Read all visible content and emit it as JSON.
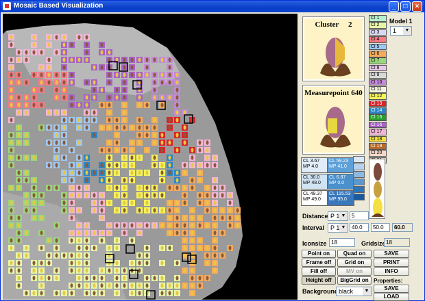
{
  "window": {
    "title": "Mosaic Based Visualization"
  },
  "preview_cluster": {
    "label": "Cluster",
    "value": "2"
  },
  "preview_measurepoint": {
    "label": "Measurepoint 640"
  },
  "model": {
    "label": "Model 1",
    "value": "1"
  },
  "clusters": [
    {
      "label": "Cl 1",
      "color": "#b6f1cd"
    },
    {
      "label": "Cl 2",
      "color": "#e6f6a8"
    },
    {
      "label": "Cl 3",
      "color": "#d8d8f4"
    },
    {
      "label": "Cl 4",
      "color": "#f47a86"
    },
    {
      "label": "Cl 5",
      "color": "#9ec8f4"
    },
    {
      "label": "Cl 6",
      "color": "#f6ab5c"
    },
    {
      "label": "Cl 7",
      "color": "#9cd67c"
    },
    {
      "label": "Cl 8",
      "color": "#e8c8ea"
    },
    {
      "label": "Cl 9",
      "color": "#d8d8d8"
    },
    {
      "label": "Cl 10",
      "color": "#c48ad8"
    },
    {
      "label": "Cl 11",
      "color": "#f4f4e0"
    },
    {
      "label": "Cl 12",
      "color": "#f4f45a"
    },
    {
      "label": "Cl 13",
      "color": "#d8242a"
    },
    {
      "label": "Cl 14",
      "color": "#2a86c8"
    },
    {
      "label": "Cl 15",
      "color": "#24a02a"
    },
    {
      "label": "Cl 16",
      "color": "#a862c8"
    },
    {
      "label": "Cl 17",
      "color": "#f4b6d8"
    },
    {
      "label": "Cl 18",
      "color": "#f4e040"
    },
    {
      "label": "Cl 19",
      "color": "#b46a2a"
    },
    {
      "label": "Cl 20",
      "color": "#f4d8c8"
    },
    {
      "label": "Cl 21",
      "color": "#d8c8b8"
    }
  ],
  "stats": [
    {
      "cl": "CL 3.67",
      "mp": "MP 4.0"
    },
    {
      "cl": "CL 59.23",
      "mp": "MP 41.0"
    },
    {
      "cl": "CL 30.0",
      "mp": "MP 48.0"
    },
    {
      "cl": "CL 6.87",
      "mp": "MP 0.0"
    },
    {
      "cl": "CL 49.37",
      "mp": "MP 49.0"
    },
    {
      "cl": "CL 115.53",
      "mp": "MP 95.0"
    }
  ],
  "stat_colors": [
    "#e0ecf8",
    "#5ea0d8",
    "#d0e4f4",
    "#4a90cc",
    "#ffffff",
    "#3a78bc"
  ],
  "swatches": [
    "#dbe8f6",
    "#b8d2ee",
    "#8cb8e2",
    "#5c98d0",
    "#2e74b8",
    "#1a5aa0"
  ],
  "distance": {
    "label": "Distance",
    "select": "P 1",
    "value": "5"
  },
  "interval": {
    "label": "Interval",
    "select": "P 1",
    "from": "40.0",
    "to": "50.0",
    "current": "60.0"
  },
  "iconsize": {
    "label": "Iconsize",
    "value": "18"
  },
  "gridsize": {
    "label": "Gridsize",
    "value": "18"
  },
  "buttons": {
    "point_on": "Point on",
    "quad_on": "Quad on",
    "save": "SAVE",
    "frame_off": "Frame off",
    "grid_on": "Grid on",
    "print": "PRINT",
    "fill_off": "Fill off",
    "mv_on": "MV on",
    "info": "INFO",
    "height_off": "Height off",
    "biggrid_on": "BigGrid on",
    "properties_label": "Properties:",
    "prop_save": "SAVE",
    "prop_load": "LOAD"
  },
  "background": {
    "label": "Background",
    "value": "black"
  }
}
